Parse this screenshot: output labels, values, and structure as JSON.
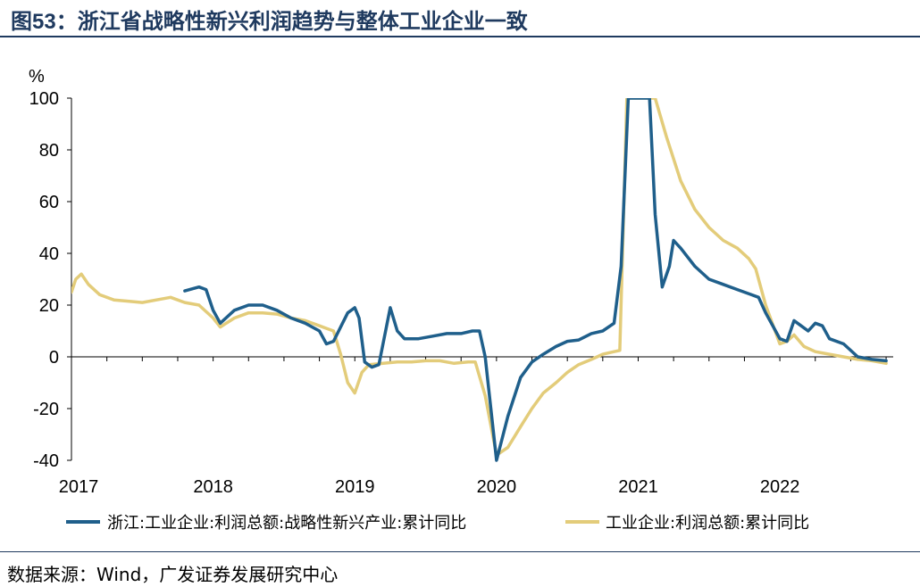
{
  "title_prefix": "图",
  "title_number": "53",
  "title_text": "：浙江省战略性新兴利润趋势与整体工业企业一致",
  "source": "数据来源：Wind，广发证券发展研究中心",
  "chart_data": {
    "type": "line",
    "ylabel": "%",
    "ylim": [
      -40,
      100
    ],
    "yticks": [
      "100",
      "80",
      "60",
      "40",
      "20",
      "0",
      "-20",
      "-40"
    ],
    "yticks_values": [
      100,
      80,
      60,
      40,
      20,
      0,
      -20,
      -40
    ],
    "xticks": [
      "2017",
      "2018",
      "2019",
      "2020",
      "2021",
      "2022"
    ],
    "xticks_values": [
      2017,
      2018,
      2019,
      2020,
      2021,
      2022
    ],
    "xlim": [
      2017,
      2022.8
    ],
    "legend_placement": "bottom",
    "series": [
      {
        "name": "浙江:工业企业:利润总额:战略性新兴产业:累计同比",
        "color": "#1f5f8b",
        "points": [
          [
            2017.8,
            25.5
          ],
          [
            2017.9,
            27
          ],
          [
            2017.95,
            26
          ],
          [
            2018.0,
            18
          ],
          [
            2018.05,
            13
          ],
          [
            2018.15,
            18
          ],
          [
            2018.25,
            20
          ],
          [
            2018.35,
            20
          ],
          [
            2018.45,
            18
          ],
          [
            2018.55,
            15
          ],
          [
            2018.65,
            13
          ],
          [
            2018.75,
            10
          ],
          [
            2018.8,
            5
          ],
          [
            2018.85,
            6
          ],
          [
            2018.95,
            17
          ],
          [
            2019.0,
            19
          ],
          [
            2019.03,
            15
          ],
          [
            2019.07,
            -2
          ],
          [
            2019.12,
            -4
          ],
          [
            2019.17,
            -3
          ],
          [
            2019.25,
            19
          ],
          [
            2019.3,
            10
          ],
          [
            2019.35,
            7
          ],
          [
            2019.45,
            7
          ],
          [
            2019.55,
            8
          ],
          [
            2019.65,
            9
          ],
          [
            2019.75,
            9
          ],
          [
            2019.83,
            10
          ],
          [
            2019.88,
            10
          ],
          [
            2019.92,
            0
          ],
          [
            2020.0,
            -40
          ],
          [
            2020.08,
            -23
          ],
          [
            2020.17,
            -8
          ],
          [
            2020.25,
            -2
          ],
          [
            2020.33,
            1
          ],
          [
            2020.42,
            4
          ],
          [
            2020.5,
            6
          ],
          [
            2020.58,
            6.5
          ],
          [
            2020.67,
            9
          ],
          [
            2020.75,
            10
          ],
          [
            2020.83,
            13
          ],
          [
            2020.88,
            35
          ],
          [
            2020.93,
            100
          ],
          [
            2021.08,
            100
          ],
          [
            2021.12,
            55
          ],
          [
            2021.17,
            27
          ],
          [
            2021.22,
            35
          ],
          [
            2021.25,
            45
          ],
          [
            2021.3,
            42
          ],
          [
            2021.4,
            35
          ],
          [
            2021.5,
            30
          ],
          [
            2021.6,
            28
          ],
          [
            2021.7,
            26
          ],
          [
            2021.8,
            24
          ],
          [
            2021.85,
            23
          ],
          [
            2021.9,
            17
          ],
          [
            2022.0,
            7
          ],
          [
            2022.05,
            6
          ],
          [
            2022.1,
            14
          ],
          [
            2022.15,
            12
          ],
          [
            2022.2,
            10
          ],
          [
            2022.25,
            13
          ],
          [
            2022.3,
            12
          ],
          [
            2022.35,
            7
          ],
          [
            2022.45,
            5
          ],
          [
            2022.55,
            0
          ],
          [
            2022.65,
            -1
          ],
          [
            2022.75,
            -1.5
          ]
        ]
      },
      {
        "name": "工业企业:利润总额:累计同比",
        "color": "#e3cc7a",
        "points": [
          [
            2017.0,
            25
          ],
          [
            2017.03,
            30
          ],
          [
            2017.07,
            32
          ],
          [
            2017.12,
            28
          ],
          [
            2017.2,
            24
          ],
          [
            2017.3,
            22
          ],
          [
            2017.4,
            21.5
          ],
          [
            2017.5,
            21
          ],
          [
            2017.6,
            22
          ],
          [
            2017.7,
            23
          ],
          [
            2017.8,
            21
          ],
          [
            2017.9,
            20
          ],
          [
            2018.0,
            15
          ],
          [
            2018.05,
            11.5
          ],
          [
            2018.15,
            15
          ],
          [
            2018.25,
            17
          ],
          [
            2018.35,
            17
          ],
          [
            2018.45,
            16.5
          ],
          [
            2018.55,
            15
          ],
          [
            2018.65,
            14
          ],
          [
            2018.75,
            12
          ],
          [
            2018.8,
            11
          ],
          [
            2018.85,
            10
          ],
          [
            2018.9,
            1
          ],
          [
            2018.95,
            -10
          ],
          [
            2019.0,
            -14
          ],
          [
            2019.05,
            -6
          ],
          [
            2019.1,
            -3
          ],
          [
            2019.2,
            -2.5
          ],
          [
            2019.3,
            -2
          ],
          [
            2019.4,
            -2
          ],
          [
            2019.5,
            -1.5
          ],
          [
            2019.6,
            -1.5
          ],
          [
            2019.7,
            -2.5
          ],
          [
            2019.8,
            -2
          ],
          [
            2019.85,
            -2
          ],
          [
            2019.92,
            -15
          ],
          [
            2020.0,
            -38
          ],
          [
            2020.08,
            -35
          ],
          [
            2020.17,
            -27
          ],
          [
            2020.25,
            -20
          ],
          [
            2020.33,
            -14
          ],
          [
            2020.42,
            -10
          ],
          [
            2020.5,
            -6
          ],
          [
            2020.58,
            -3
          ],
          [
            2020.67,
            -1
          ],
          [
            2020.75,
            1
          ],
          [
            2020.83,
            2
          ],
          [
            2020.87,
            2.5
          ],
          [
            2020.92,
            100
          ],
          [
            2021.12,
            100
          ],
          [
            2021.2,
            85
          ],
          [
            2021.3,
            68
          ],
          [
            2021.4,
            57
          ],
          [
            2021.5,
            50
          ],
          [
            2021.6,
            45
          ],
          [
            2021.7,
            42
          ],
          [
            2021.78,
            38
          ],
          [
            2021.83,
            34
          ],
          [
            2021.9,
            20
          ],
          [
            2022.0,
            5
          ],
          [
            2022.05,
            6
          ],
          [
            2022.1,
            8.5
          ],
          [
            2022.17,
            4
          ],
          [
            2022.25,
            2
          ],
          [
            2022.35,
            1
          ],
          [
            2022.45,
            0
          ],
          [
            2022.55,
            -1
          ],
          [
            2022.65,
            -1.5
          ],
          [
            2022.75,
            -2.5
          ]
        ]
      }
    ]
  }
}
